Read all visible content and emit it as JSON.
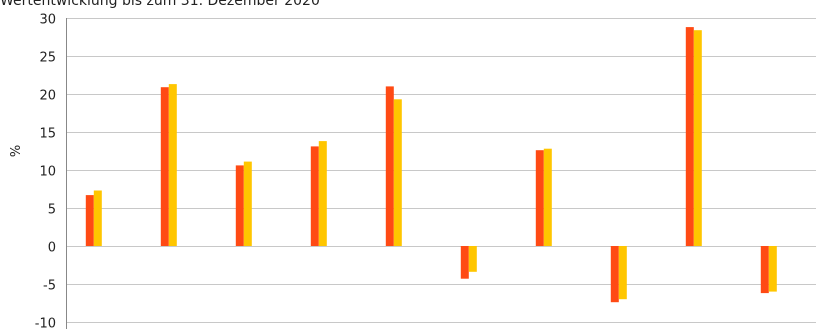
{
  "chart_data": {
    "type": "bar",
    "title": "Wertentwicklung bis zum 31. Dezember 2020",
    "ylabel": "%",
    "xlabel": "",
    "ylim": [
      -10,
      30
    ],
    "yticks": [
      30,
      25,
      20,
      15,
      10,
      5,
      0,
      -5,
      -10
    ],
    "grid": true,
    "legend": "none",
    "categories": [
      "",
      "",
      "",
      "",
      "",
      "",
      "",
      "",
      "",
      ""
    ],
    "series": [
      {
        "color": "#ff4a14",
        "values": [
          6.7,
          20.9,
          10.6,
          13.1,
          21.0,
          -4.3,
          12.6,
          -7.4,
          28.8,
          -6.2
        ]
      },
      {
        "color": "#ffc600",
        "values": [
          7.3,
          21.3,
          11.1,
          13.8,
          19.3,
          -3.4,
          12.8,
          -7.0,
          28.4,
          -6.0
        ]
      }
    ]
  }
}
